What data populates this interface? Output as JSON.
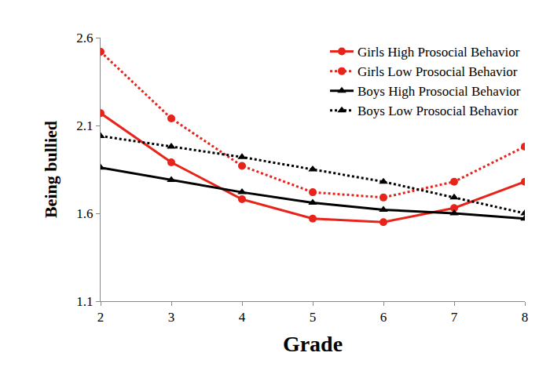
{
  "chart_data": {
    "type": "line",
    "x_label": "Grade",
    "y_label": "Being bullied",
    "x": [
      2,
      3,
      4,
      5,
      6,
      7,
      8
    ],
    "xlim": [
      2,
      8
    ],
    "xticks": [
      2,
      3,
      4,
      5,
      6,
      7,
      8
    ],
    "ylim": [
      1.1,
      2.6
    ],
    "yticks": [
      1.1,
      1.6,
      2.1,
      2.6
    ],
    "grid": false,
    "legend": "top right",
    "series": [
      {
        "name": "Girls High Prosocial Behavior",
        "color": "#e8231a",
        "marker": "circle",
        "line_style": "solid",
        "values": [
          2.17,
          1.89,
          1.68,
          1.57,
          1.55,
          1.63,
          1.78
        ]
      },
      {
        "name": "Girls Low Prosocial Behavior",
        "color": "#e8231a",
        "marker": "circle",
        "line_style": "dotted",
        "values": [
          2.52,
          2.14,
          1.87,
          1.72,
          1.69,
          1.78,
          1.98
        ]
      },
      {
        "name": "Boys High Prosocial Behavior",
        "color": "#000000",
        "marker": "triangle",
        "line_style": "solid",
        "values": [
          1.86,
          1.79,
          1.72,
          1.66,
          1.62,
          1.6,
          1.57
        ]
      },
      {
        "name": "Boys Low Prosocial Behavior",
        "color": "#000000",
        "marker": "triangle",
        "line_style": "dotted",
        "values": [
          2.04,
          1.98,
          1.92,
          1.85,
          1.78,
          1.69,
          1.6
        ]
      }
    ]
  }
}
